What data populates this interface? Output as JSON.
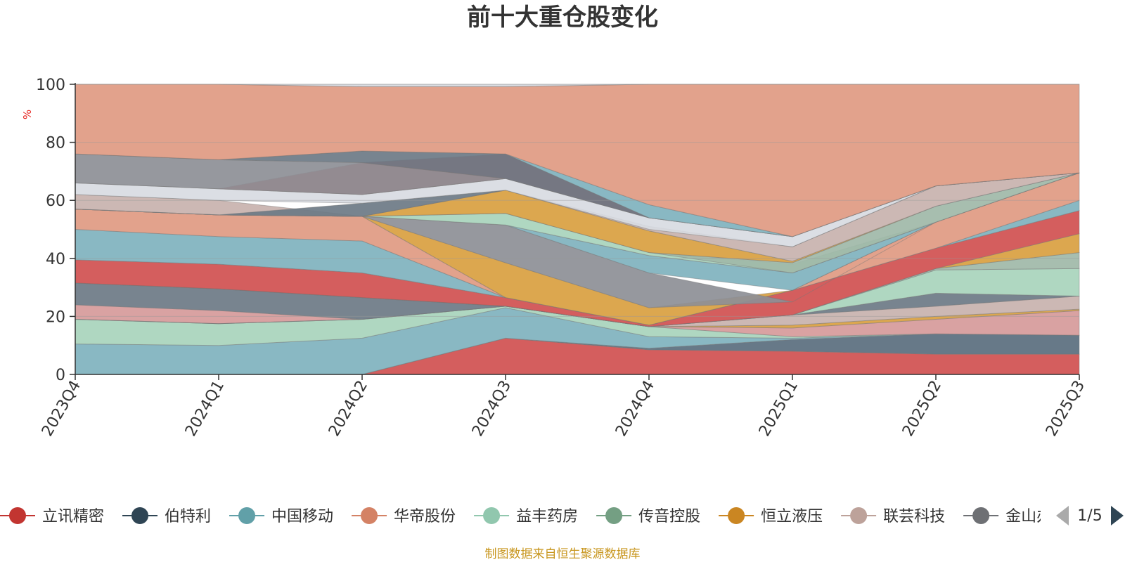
{
  "chart_data": {
    "type": "area",
    "title": "前十大重仓股变化",
    "ylabel": "%",
    "ylim": [
      0,
      100
    ],
    "yticks": [
      0,
      20,
      40,
      60,
      80,
      100
    ],
    "categories": [
      "2023Q4",
      "2024Q1",
      "2024Q2",
      "2024Q3",
      "2024Q4",
      "2025Q1",
      "2025Q2",
      "2025Q3"
    ],
    "bands": [
      {
        "color": "#d05050",
        "lower": [
          0,
          0,
          0,
          0,
          0,
          0,
          0,
          0
        ],
        "upper": [
          0,
          0,
          0,
          12.5,
          8.5,
          8,
          7,
          7
        ]
      },
      {
        "color": "#5a6e7e",
        "lower": [
          0,
          0,
          0,
          12.5,
          8.5,
          8,
          7,
          7
        ],
        "upper": [
          0,
          0,
          0,
          12.5,
          9,
          12,
          14,
          13.5
        ]
      },
      {
        "color": "#7fb2be",
        "lower": [
          0,
          0,
          0,
          12.5,
          9,
          12,
          14,
          13.5
        ],
        "upper": [
          10.5,
          10,
          12.5,
          23,
          13,
          12.5,
          14,
          13.5
        ]
      },
      {
        "color": "#a8d4bc",
        "lower": [
          10.5,
          10,
          12.5,
          23,
          13,
          12.5,
          14,
          13.5
        ],
        "upper": [
          19,
          17.5,
          19,
          23.5,
          16.5,
          13,
          14,
          13.5
        ]
      },
      {
        "color": "#d69a9a",
        "lower": [
          19,
          17.5,
          19,
          23.5,
          16.5,
          13,
          14,
          13.5
        ],
        "upper": [
          24,
          22,
          19,
          23.5,
          16.5,
          16,
          19,
          22
        ]
      },
      {
        "color": "#d9a040",
        "lower": [
          19,
          17.5,
          19,
          23.5,
          16.5,
          16,
          19,
          22
        ],
        "upper": [
          19,
          17.5,
          19,
          23.5,
          16.5,
          17,
          20,
          22.5
        ]
      },
      {
        "color": "#c8b2ae",
        "lower": [
          19,
          17.5,
          19,
          23.5,
          16.5,
          17,
          20,
          22.5
        ],
        "upper": [
          19,
          17.5,
          19,
          23.5,
          16.5,
          20.5,
          23.5,
          27
        ]
      },
      {
        "color": "#6c7986",
        "lower": [
          24,
          22,
          19,
          23.5,
          16.5,
          20.5,
          23.5,
          27
        ],
        "upper": [
          31.5,
          29.5,
          26.5,
          23.5,
          16.5,
          20.5,
          28,
          27
        ]
      },
      {
        "color": "#a8d4bc",
        "lower": [
          31.5,
          29.5,
          26.5,
          23.5,
          16.5,
          20.5,
          28,
          27
        ],
        "upper": [
          31.5,
          29.5,
          26.5,
          23.5,
          16.5,
          20.5,
          36,
          36.5
        ]
      },
      {
        "color": "#9fb8a8",
        "lower": [
          31.5,
          29.5,
          26.5,
          23.5,
          16.5,
          20.5,
          36,
          36.5
        ],
        "upper": [
          31.5,
          29.5,
          26.5,
          23.5,
          16.5,
          20.5,
          36.5,
          42
        ]
      },
      {
        "color": "#d9a040",
        "lower": [
          31.5,
          29.5,
          26.5,
          23.5,
          16.5,
          20.5,
          36.5,
          42
        ],
        "upper": [
          31.5,
          29.5,
          26.5,
          23.5,
          16.5,
          20.5,
          36.5,
          48.5
        ]
      },
      {
        "color": "#d05050",
        "lower": [
          31.5,
          29.5,
          26.5,
          23.5,
          16.5,
          20.5,
          36.5,
          48.5
        ],
        "upper": [
          39.5,
          38,
          35,
          26.5,
          17,
          29,
          43.5,
          56.5
        ]
      },
      {
        "color": "#7fb2be",
        "lower": [
          39.5,
          38,
          35,
          26.5,
          17,
          29,
          43.5,
          56.5
        ],
        "upper": [
          50,
          47.5,
          46,
          26.5,
          17,
          29,
          43.5,
          60
        ]
      },
      {
        "color": "#e09a82",
        "lower": [
          50,
          47.5,
          46,
          26.5,
          17,
          29,
          43.5,
          60
        ],
        "upper": [
          57,
          55,
          54.5,
          26.5,
          17,
          29,
          52.5,
          69.5
        ]
      },
      {
        "color": "#d9a040",
        "lower": [
          57,
          55,
          54.5,
          26.5,
          17,
          29,
          52.5,
          69.5
        ],
        "upper": [
          57,
          55,
          54.5,
          38.5,
          23,
          29,
          52.5,
          69.5
        ]
      },
      {
        "color": "#8d8f96",
        "lower": [
          57,
          55,
          54.5,
          38.5,
          23,
          25,
          52.5,
          69.5
        ],
        "upper": [
          57,
          55,
          54.5,
          51.5,
          35,
          25,
          52.5,
          69.5
        ]
      },
      {
        "color": "#7fb2be",
        "lower": [
          57,
          55,
          54.5,
          51.5,
          35,
          29,
          52.5,
          69.5
        ],
        "upper": [
          57,
          55,
          54.5,
          51.5,
          41,
          35,
          52.5,
          69.5
        ]
      },
      {
        "color": "#a8d4bc",
        "lower": [
          57,
          55,
          54.5,
          51.5,
          41,
          35,
          52.5,
          69.5
        ],
        "upper": [
          57,
          55,
          54.5,
          55.5,
          42,
          38,
          52.5,
          69.5
        ]
      },
      {
        "color": "#9fb8a8",
        "lower": [
          57,
          55,
          54.5,
          55.5,
          42,
          35,
          52.5,
          69.5
        ],
        "upper": [
          57,
          55,
          54.5,
          55.5,
          42,
          38.5,
          58,
          69.5
        ]
      },
      {
        "color": "#d9a040",
        "lower": [
          57,
          55,
          54.5,
          55.5,
          42,
          38.5,
          58,
          69.5
        ],
        "upper": [
          57,
          55,
          54.5,
          63.5,
          49.5,
          39,
          58,
          69.5
        ]
      },
      {
        "color": "#c8b2ae",
        "lower": [
          57,
          55,
          54.5,
          63.5,
          49.5,
          39,
          58,
          69.5
        ],
        "upper": [
          62,
          60,
          54.5,
          63.5,
          51,
          44,
          65,
          69.5
        ]
      },
      {
        "color": "#6c7986",
        "lower": [
          57,
          55,
          54.5,
          63.5,
          51,
          44,
          65,
          69.5
        ],
        "upper": [
          57,
          55,
          59,
          63.5,
          51,
          44,
          65,
          69.5
        ]
      },
      {
        "color": "#d8dbe2",
        "lower": [
          62,
          60,
          59,
          63.5,
          50,
          44,
          65,
          69.5
        ],
        "upper": [
          66,
          64,
          62,
          67.5,
          54,
          47.5,
          65,
          69.5
        ]
      },
      {
        "color": "#d05050",
        "lower": [
          66,
          64,
          62,
          67.5,
          54,
          47.5,
          65,
          69.5
        ],
        "upper": [
          66,
          64,
          73,
          76,
          54,
          47.5,
          65,
          69.5
        ]
      },
      {
        "color": "#8d8f96",
        "lower": [
          66,
          64,
          62,
          67.5,
          54,
          47.5,
          65,
          69.5
        ],
        "upper": [
          76,
          74,
          73,
          67.5,
          54,
          47.5,
          65,
          69.5
        ]
      },
      {
        "color": "#6c7986",
        "lower": [
          76,
          74,
          73,
          67.5,
          54,
          47.5,
          65,
          69.5
        ],
        "upper": [
          76,
          74,
          77,
          76,
          54,
          47.5,
          65,
          69.5
        ]
      },
      {
        "color": "#7fb2be",
        "lower": [
          76,
          74,
          77,
          76,
          54,
          47.5,
          65,
          69.5
        ],
        "upper": [
          76,
          74,
          77,
          76,
          58.5,
          47.5,
          65,
          69.5
        ]
      },
      {
        "color": "#e09a82",
        "lower": [
          76,
          74,
          77,
          76,
          58.5,
          47.5,
          65,
          69.5
        ],
        "upper": [
          100,
          100,
          99.2,
          99.2,
          100,
          100,
          100,
          100
        ]
      },
      {
        "color": "#d8dbe2",
        "lower": [
          100,
          100,
          99.2,
          99.2,
          100,
          100,
          100,
          100
        ],
        "upper": [
          100,
          100,
          100,
          100,
          100,
          100,
          100,
          100
        ]
      }
    ],
    "legend": [
      {
        "name": "立讯精密",
        "color": "#c23531"
      },
      {
        "name": "伯特利",
        "color": "#2f4554"
      },
      {
        "name": "中国移动",
        "color": "#61a0a8"
      },
      {
        "name": "华帝股份",
        "color": "#d48265"
      },
      {
        "name": "益丰药房",
        "color": "#91c7ae"
      },
      {
        "name": "传音控股",
        "color": "#749f83"
      },
      {
        "name": "恒立液压",
        "color": "#ca8622"
      },
      {
        "name": "联芸科技",
        "color": "#bda29a"
      },
      {
        "name": "金山办公",
        "color": "#6e7074"
      }
    ],
    "legend_page": "1/5"
  },
  "footer": {
    "source": "制图数据来自恒生聚源数据库"
  },
  "colors": {
    "axis": "#333333",
    "grid": "#cccccc",
    "unit": "#e6231e",
    "source": "#c8961e",
    "pager_active": "#2f4554",
    "pager_inactive": "#aaaaaa"
  }
}
